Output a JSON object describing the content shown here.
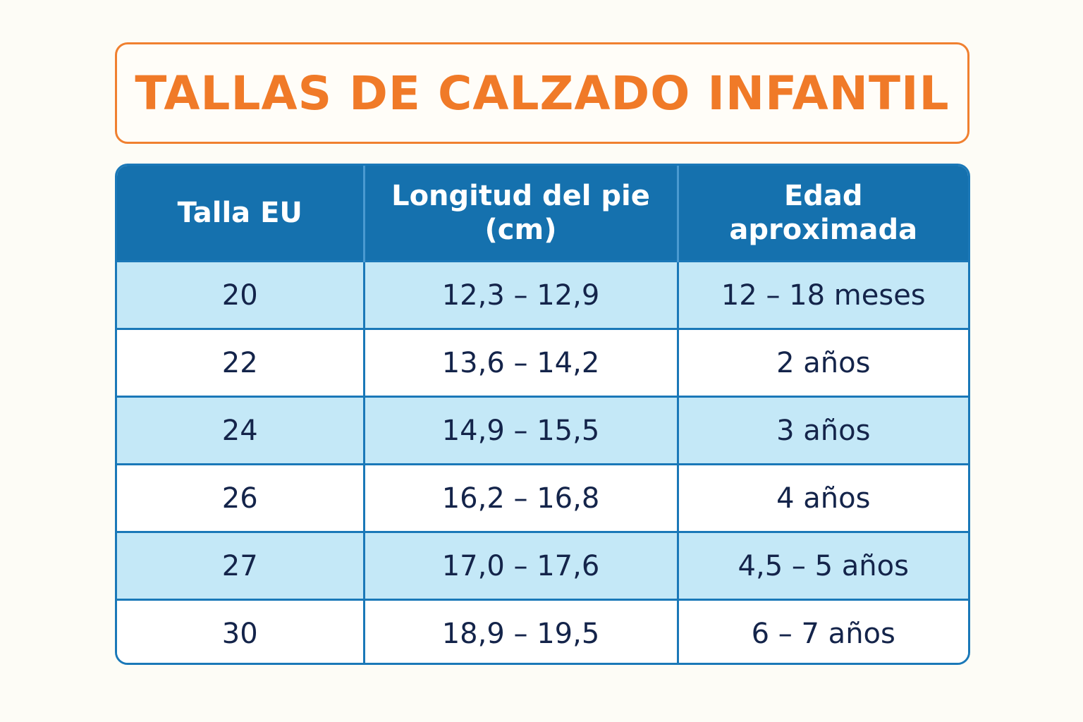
{
  "title": "TALLAS DE CALZADO INFANTIL",
  "table": {
    "headers": [
      "Talla EU",
      "Longitud del pie (cm)",
      "Edad aproximada"
    ],
    "rows": [
      [
        "20",
        "12,3 – 12,9",
        "12 – 18 meses"
      ],
      [
        "22",
        "13,6 – 14,2",
        "2 años"
      ],
      [
        "24",
        "14,9 – 15,5",
        "3 años"
      ],
      [
        "26",
        "16,2 – 16,8",
        "4 años"
      ],
      [
        "27",
        "17,0 – 17,6",
        "4,5 – 5 años"
      ],
      [
        "30",
        "18,9 – 19,5",
        "6 – 7 años"
      ]
    ]
  },
  "colors": {
    "title": "#f07a28",
    "header_bg": "#1571ae",
    "row_shaded": "#c4e8f7",
    "row_plain": "#ffffff",
    "text": "#14244a"
  }
}
